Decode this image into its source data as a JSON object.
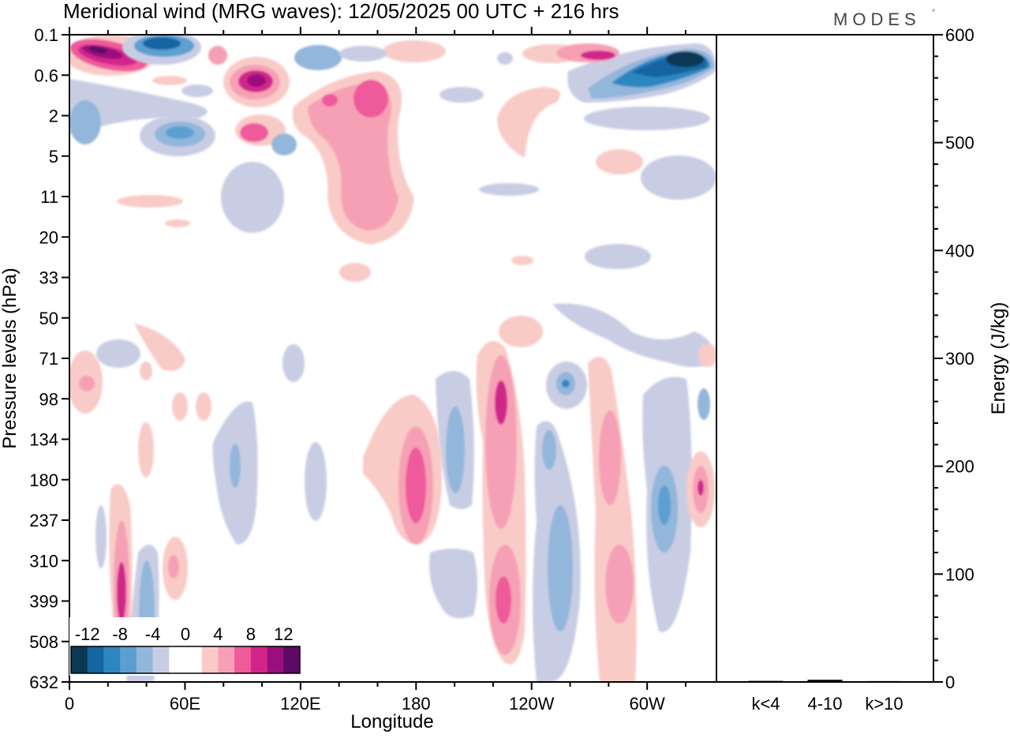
{
  "title": "Meridional wind (MRG waves):  12/05/2025  00 UTC  + 216 hrs",
  "logo": "MODES",
  "logo_mark": "°",
  "chart_data": [
    {
      "type": "heatmap",
      "title": "Meridional wind (MRG waves):  12/05/2025  00 UTC  + 216 hrs",
      "xlabel": "Longitude",
      "ylabel": "Pressure levels (hPa)",
      "x_ticks": [
        "0",
        "60E",
        "120E",
        "180",
        "120W",
        "60W"
      ],
      "x_range": [
        0,
        336
      ],
      "y_ticks": [
        "0.1",
        "0.6",
        "2",
        "5",
        "11",
        "20",
        "33",
        "50",
        "71",
        "98",
        "134",
        "180",
        "237",
        "310",
        "399",
        "508",
        "632"
      ],
      "y_scale": "pressure levels (top to bottom)",
      "colorbar": {
        "labels": [
          "-12",
          "-8",
          "-4",
          "0",
          "4",
          "8",
          "12"
        ],
        "colors": [
          "#0b3954",
          "#1565a0",
          "#2e86c1",
          "#5b9fd0",
          "#93b6db",
          "#c9cde4",
          "#ffffff",
          "#ffffff",
          "#f9cbc7",
          "#f6a0b5",
          "#ee5a9a",
          "#d0268a",
          "#9b0f7d",
          "#5c0a66"
        ]
      },
      "features": [
        {
          "lon": 14,
          "level": 0.6,
          "value": 12
        },
        {
          "lon": 42,
          "level": 0.3,
          "value": -8
        },
        {
          "lon": 98,
          "level": 1.1,
          "value": 10
        },
        {
          "lon": 155,
          "level": 1.6,
          "value": 7
        },
        {
          "lon": 158,
          "level": 3.8,
          "value": 5
        },
        {
          "lon": 310,
          "level": 0.6,
          "value": -14
        },
        {
          "lon": 285,
          "level": 0.5,
          "value": 8
        },
        {
          "lon": 50,
          "level": 2.5,
          "value": -6
        },
        {
          "lon": 38,
          "level": 13.8,
          "value": 9
        },
        {
          "lon": 46,
          "level": 14.2,
          "value": -6
        },
        {
          "lon": 186,
          "level": 11.3,
          "value": 9
        },
        {
          "lon": 205,
          "level": 10.5,
          "value": -7
        },
        {
          "lon": 226,
          "level": 9.0,
          "value": 9
        },
        {
          "lon": 229,
          "level": 14.0,
          "value": 9
        },
        {
          "lon": 258,
          "level": 13.7,
          "value": -6
        },
        {
          "lon": 276,
          "level": 11.0,
          "value": 7
        },
        {
          "lon": 276,
          "level": 14.0,
          "value": 6
        },
        {
          "lon": 310,
          "level": 12.3,
          "value": -7
        },
        {
          "lon": 326,
          "level": 11.3,
          "value": 9
        }
      ]
    },
    {
      "type": "bar",
      "ylabel": "Energy (J/kg)",
      "categories": [
        "k<4",
        "4-10",
        "k>10"
      ],
      "values": [
        0.5,
        1.5,
        0.3
      ],
      "ylim": [
        0,
        600
      ],
      "y_ticks": [
        "0",
        "100",
        "200",
        "300",
        "400",
        "500",
        "600"
      ]
    }
  ]
}
